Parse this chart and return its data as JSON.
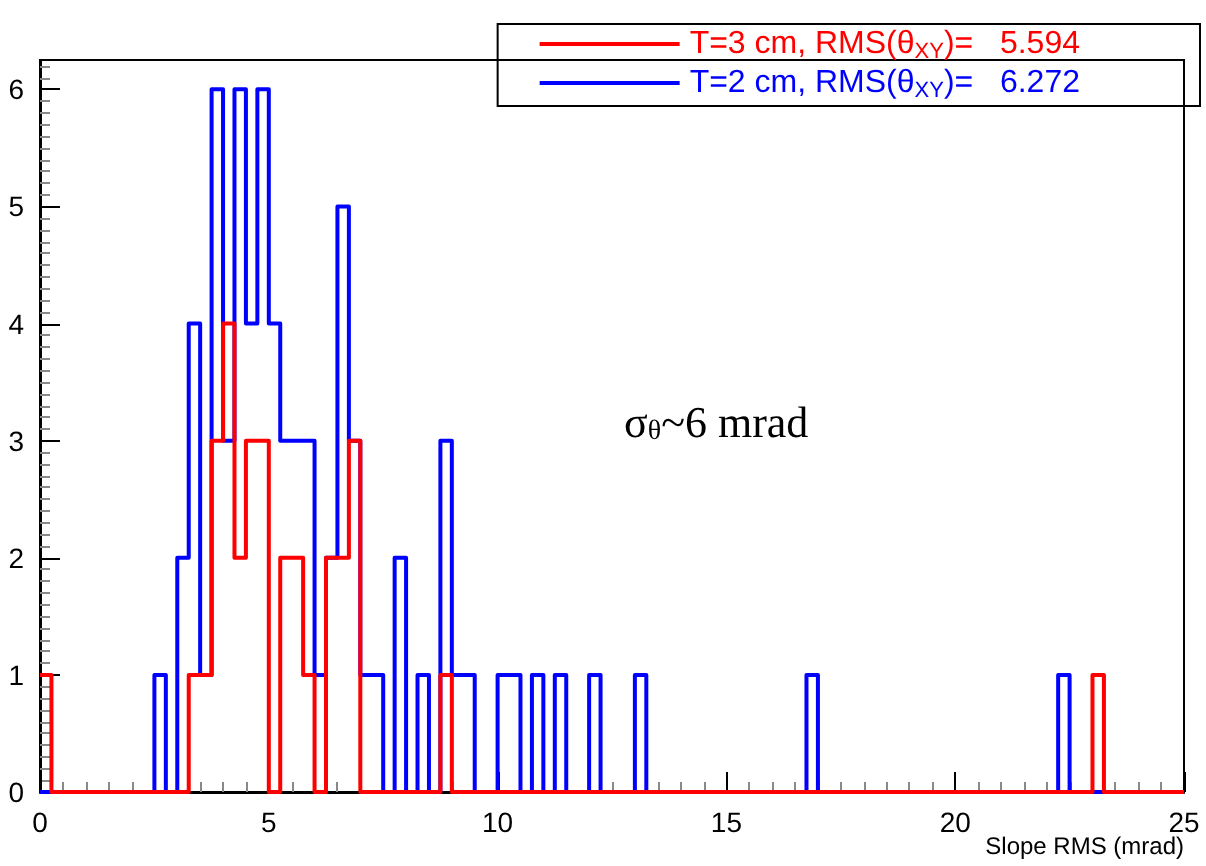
{
  "chart_data": {
    "type": "histogram",
    "xlabel": "Slope RMS (mrad)",
    "bins": [
      0,
      0.25,
      0.5,
      0.75,
      1,
      1.25,
      1.5,
      1.75,
      2,
      2.25,
      2.5,
      2.75,
      3,
      3.25,
      3.5,
      3.75,
      4,
      4.25,
      4.5,
      4.75,
      5,
      5.25,
      5.5,
      5.75,
      6,
      6.25,
      6.5,
      6.75,
      7,
      7.25,
      7.5,
      7.75,
      8,
      8.25,
      8.5,
      8.75,
      9,
      9.25,
      9.5,
      9.75,
      10,
      10.25,
      10.5,
      10.75,
      11,
      11.25,
      11.5,
      11.75,
      12,
      12.25,
      12.5,
      12.75,
      13,
      13.25,
      13.5,
      13.75,
      14,
      14.25,
      14.5,
      14.75,
      15,
      15.25,
      15.5,
      15.75,
      16,
      16.25,
      16.5,
      16.75,
      17,
      17.25,
      17.5,
      17.75,
      18,
      18.25,
      18.5,
      18.75,
      19,
      19.25,
      19.5,
      19.75,
      20,
      20.25,
      20.5,
      20.75,
      21,
      21.25,
      21.5,
      21.75,
      22,
      22.25,
      22.5,
      22.75,
      23,
      23.25,
      23.5,
      23.75,
      24,
      24.25,
      24.5,
      24.75,
      25
    ],
    "series": [
      {
        "name": "T=3 cm, RMS(θ$_{XY}$)=   5.594",
        "color": "#ff0000",
        "values": [
          1,
          0,
          0,
          0,
          0,
          0,
          0,
          0,
          0,
          0,
          0,
          0,
          0,
          1,
          1,
          3,
          4,
          2,
          3,
          3,
          0,
          2,
          2,
          1,
          0,
          2,
          2,
          3,
          0,
          0,
          0,
          0,
          0,
          0,
          0,
          1,
          0,
          0,
          0,
          0,
          0,
          0,
          0,
          0,
          0,
          0,
          0,
          0,
          0,
          0,
          0,
          0,
          0,
          0,
          0,
          0,
          0,
          0,
          0,
          0,
          0,
          0,
          0,
          0,
          0,
          0,
          0,
          0,
          0,
          0,
          0,
          0,
          0,
          0,
          0,
          0,
          0,
          0,
          0,
          0,
          0,
          0,
          0,
          0,
          0,
          0,
          0,
          0,
          0,
          0,
          0,
          0,
          1,
          0,
          0,
          0,
          0,
          0,
          0,
          0
        ]
      },
      {
        "name": "T=2 cm, RMS(θ$_{XY}$)=   6.272",
        "color": "#0000ff",
        "values": [
          0,
          0,
          0,
          0,
          0,
          0,
          0,
          0,
          0,
          0,
          1,
          0,
          2,
          4,
          1,
          6,
          3,
          6,
          4,
          6,
          4,
          3,
          3,
          3,
          1,
          2,
          5,
          3,
          1,
          1,
          0,
          2,
          0,
          1,
          0,
          3,
          1,
          1,
          0,
          0,
          1,
          1,
          0,
          1,
          0,
          1,
          0,
          0,
          1,
          0,
          0,
          0,
          1,
          0,
          0,
          0,
          0,
          0,
          0,
          0,
          0,
          0,
          0,
          0,
          0,
          0,
          0,
          1,
          0,
          0,
          0,
          0,
          0,
          0,
          0,
          0,
          0,
          0,
          0,
          0,
          0,
          0,
          0,
          0,
          0,
          0,
          0,
          0,
          0,
          1,
          0,
          0,
          0,
          0,
          0,
          0,
          0,
          0,
          0,
          0
        ]
      }
    ],
    "xlim": [
      0,
      25
    ],
    "xticks": [
      0,
      5,
      10,
      15,
      20,
      25
    ],
    "ylim": [
      0,
      6.25
    ],
    "yticks": [
      0,
      1,
      2,
      3,
      4,
      5,
      6
    ],
    "annotations": [
      "σ$_{θ}$~6 mrad"
    ],
    "legend": "top right",
    "grid": false
  }
}
